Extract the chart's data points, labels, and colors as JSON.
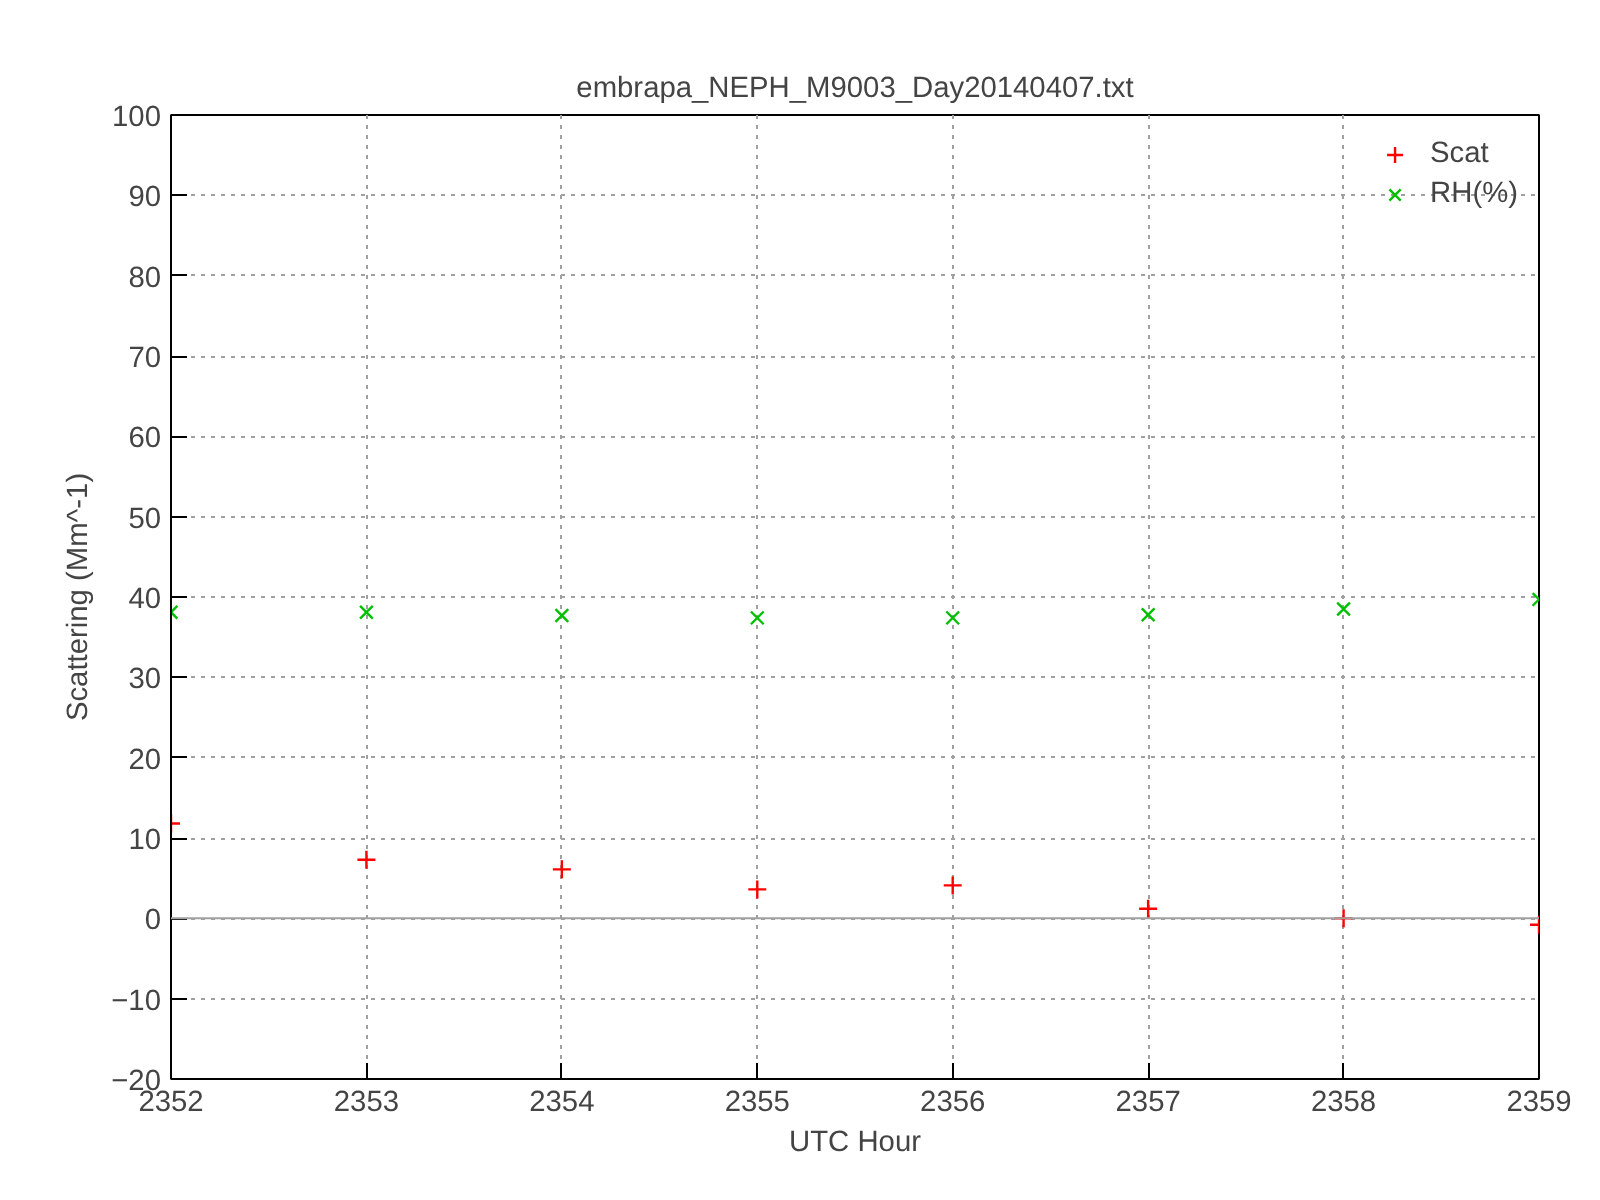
{
  "chart_data": {
    "type": "scatter",
    "title": "embrapa_NEPH_M9003_Day20140407.txt",
    "xlabel": "UTC Hour",
    "ylabel": "Scattering (Mm^-1)",
    "x": [
      2352,
      2353,
      2354,
      2355,
      2356,
      2357,
      2358,
      2359
    ],
    "series": [
      {
        "name": "Scat",
        "color": "#ff0000",
        "marker": "cross",
        "values": [
          11.8,
          7.3,
          6.1,
          3.6,
          4.1,
          1.2,
          0.0,
          -0.8
        ]
      },
      {
        "name": "RH(%)",
        "color": "#00c000",
        "marker": "x",
        "values": [
          38.1,
          38.1,
          37.7,
          37.4,
          37.4,
          37.8,
          38.5,
          39.7
        ]
      }
    ],
    "xlim": [
      2352,
      2359
    ],
    "xticks": [
      2352,
      2353,
      2354,
      2355,
      2356,
      2357,
      2358,
      2359
    ],
    "ylim": [
      -20,
      100
    ],
    "yticks": [
      -20,
      -10,
      0,
      10,
      20,
      30,
      40,
      50,
      60,
      70,
      80,
      90,
      100
    ],
    "ref_lines": [
      {
        "axis": "y",
        "value": 0,
        "color": "#a0a0a0"
      }
    ],
    "grid": true,
    "legend": "top right"
  }
}
